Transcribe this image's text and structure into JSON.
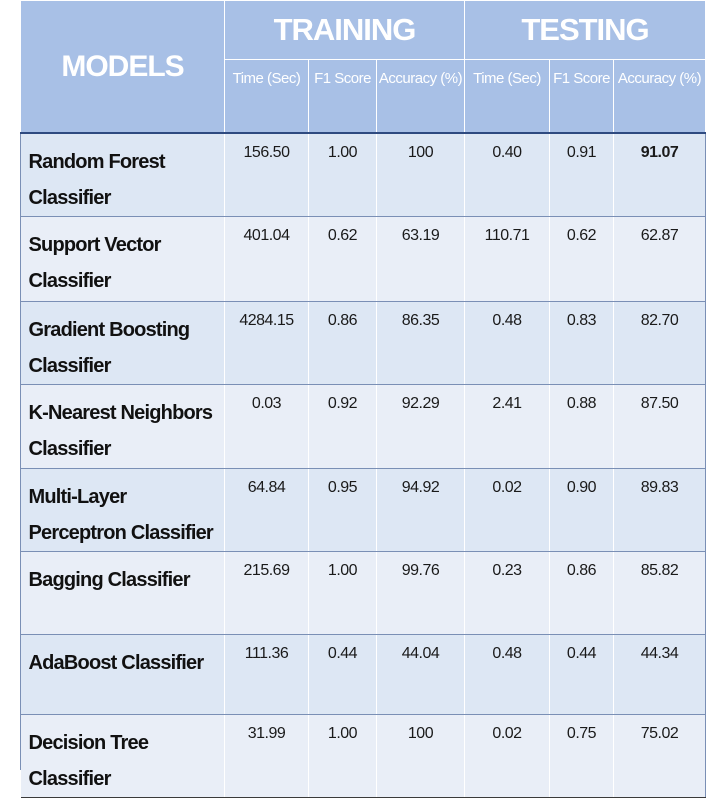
{
  "header": {
    "models": "MODELS",
    "training": "TRAINING",
    "testing": "TESTING",
    "subcols": [
      "Time (Sec)",
      "F1 Score",
      "Accuracy (%)",
      "Time (Sec)",
      "F1 Score",
      "Accuracy (%)"
    ]
  },
  "rows": [
    {
      "model": "Random Forest Classifier",
      "train_time": "156.50",
      "train_f1": "1.00",
      "train_acc": "100",
      "test_time": "0.40",
      "test_f1": "0.91",
      "test_acc": "91.07"
    },
    {
      "model": "Support Vector Classifier",
      "train_time": "401.04",
      "train_f1": "0.62",
      "train_acc": "63.19",
      "test_time": "110.71",
      "test_f1": "0.62",
      "test_acc": "62.87"
    },
    {
      "model": "Gradient Boosting Classifier",
      "train_time": "4284.15",
      "train_f1": "0.86",
      "train_acc": "86.35",
      "test_time": "0.48",
      "test_f1": "0.83",
      "test_acc": "82.70"
    },
    {
      "model": "K-Nearest Neighbors Classifier",
      "train_time": "0.03",
      "train_f1": "0.92",
      "train_acc": "92.29",
      "test_time": "2.41",
      "test_f1": "0.88",
      "test_acc": "87.50"
    },
    {
      "model": "Multi-Layer Perceptron Classifier",
      "train_time": "64.84",
      "train_f1": "0.95",
      "train_acc": "94.92",
      "test_time": "0.02",
      "test_f1": "0.90",
      "test_acc": "89.83"
    },
    {
      "model": "Bagging Classifier",
      "train_time": "215.69",
      "train_f1": "1.00",
      "train_acc": "99.76",
      "test_time": "0.23",
      "test_f1": "0.86",
      "test_acc": "85.82"
    },
    {
      "model": "AdaBoost Classifier",
      "train_time": "111.36",
      "train_f1": "0.44",
      "train_acc": "44.04",
      "test_time": "0.48",
      "test_f1": "0.44",
      "test_acc": "44.34"
    },
    {
      "model": "Decision Tree Classifier",
      "train_time": "31.99",
      "train_f1": "1.00",
      "train_acc": "100",
      "test_time": "0.02",
      "test_f1": "0.75",
      "test_acc": "75.02"
    }
  ]
}
